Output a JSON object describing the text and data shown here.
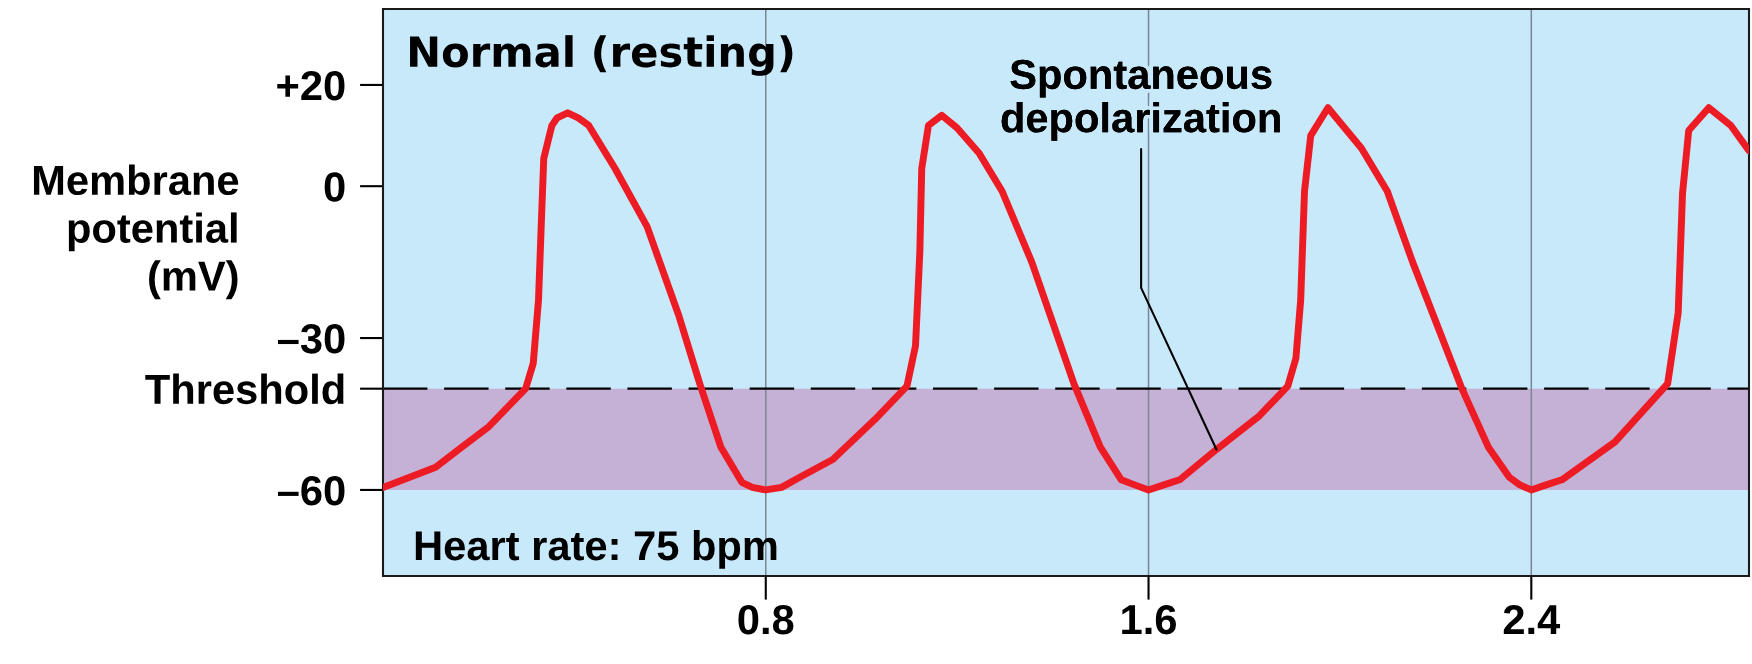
{
  "chart_data": {
    "type": "line",
    "title": "Normal (resting)",
    "ylabel": "Membrane\npotential\n(mV)",
    "annotations": [
      "Heart rate: 75 bpm",
      {
        "text": "Spontaneous\ndepolarization",
        "x": 1.742,
        "y": -52
      }
    ],
    "x": [
      0,
      0.11,
      0.165,
      0.221,
      0.298,
      0.314,
      0.325,
      0.331,
      0.336,
      0.353,
      0.364,
      0.386,
      0.408,
      0.43,
      0.485,
      0.552,
      0.618,
      0.662,
      0.706,
      0.75,
      0.772,
      0.8,
      0.833,
      0.871,
      0.94,
      1.029,
      1.095,
      1.113,
      1.122,
      1.126,
      1.14,
      1.168,
      1.2,
      1.246,
      1.294,
      1.356,
      1.444,
      1.499,
      1.543,
      1.571,
      1.6,
      1.632,
      1.665,
      1.742,
      1.83,
      1.891,
      1.908,
      1.918,
      1.926,
      1.939,
      1.975,
      2.045,
      2.099,
      2.152,
      2.255,
      2.31,
      2.354,
      2.376,
      2.4,
      2.431,
      2.464,
      2.575,
      2.685,
      2.707,
      2.716,
      2.729,
      2.771,
      2.817,
      2.855
    ],
    "series": [
      {
        "color": "#ed1c24",
        "values": [
          -59.5,
          -55.5,
          -51.5,
          -47.5,
          -40,
          -35,
          -22.5,
          -7,
          5.5,
          12,
          13.5,
          14.5,
          13.5,
          12,
          3.5,
          -8,
          -25.5,
          -39,
          -51.5,
          -58.5,
          -59.5,
          -60,
          -59.5,
          -57.5,
          -54,
          -46,
          -39.5,
          -31.5,
          -13,
          3.5,
          12,
          14,
          11.5,
          6.5,
          -1,
          -15,
          -39,
          -51.5,
          -58,
          -59,
          -60,
          -59,
          -58,
          -52,
          -45.5,
          -39.5,
          -34,
          -22.5,
          -1,
          10,
          15.5,
          7.5,
          -1,
          -15,
          -40,
          -51.5,
          -57.5,
          -59,
          -60,
          -59,
          -58,
          -50.5,
          -39,
          -25,
          -1.5,
          11,
          15.5,
          12,
          7
        ]
      }
    ],
    "xlim": [
      0,
      2.855
    ],
    "ylim": [
      -77,
      35
    ],
    "xticks": [
      0.8,
      1.6,
      2.4
    ],
    "yticks": [
      {
        "value": 20,
        "label": "+20"
      },
      0,
      {
        "value": -30,
        "label": "–30"
      },
      {
        "value": -40,
        "label": "Threshold"
      },
      {
        "value": -60,
        "label": "–60"
      }
    ],
    "grid": "x",
    "ref_lines": [
      {
        "axis": "y",
        "value": -40,
        "color": "#000000",
        "line_style": "dashed"
      }
    ],
    "bands": [
      {
        "axis": "y",
        "from": -60,
        "to": -40,
        "color": "#c6b1d6"
      }
    ]
  }
}
